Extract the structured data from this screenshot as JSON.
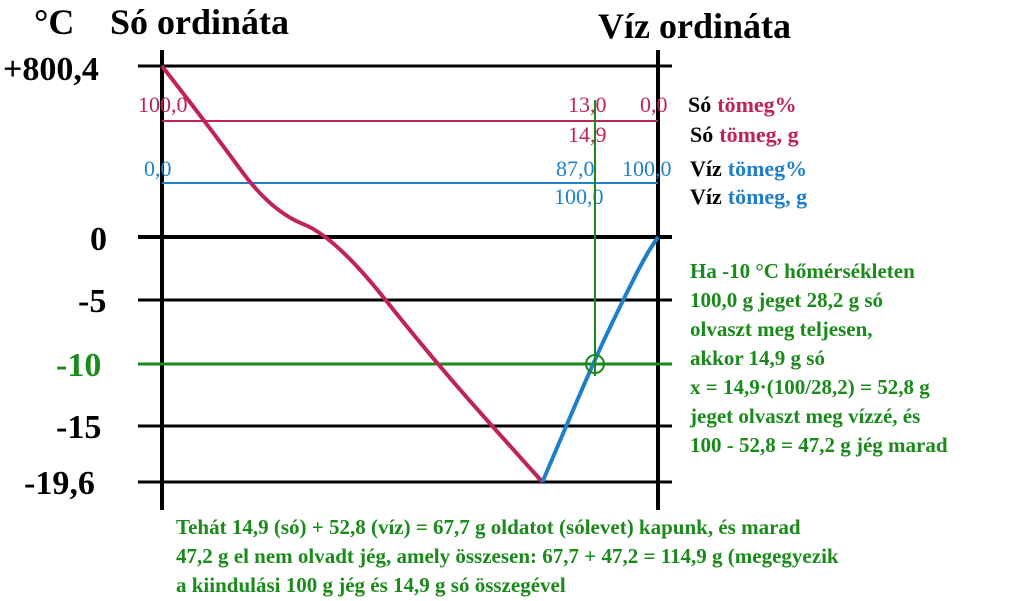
{
  "colors": {
    "salt": "#c0225a",
    "water": "#1f7fc9",
    "highlight": "#1a8a1a",
    "axis": "#000000"
  },
  "header": {
    "unit": "°C",
    "left_title": "Só ordináta",
    "right_title": "Víz ordináta"
  },
  "temperature_ticks": [
    {
      "label": "+800,4",
      "value": 800.4,
      "highlight": false
    },
    {
      "label": "0",
      "value": 0,
      "highlight": false
    },
    {
      "label": "-5",
      "value": -5,
      "highlight": false
    },
    {
      "label": "-10",
      "value": -10,
      "highlight": true
    },
    {
      "label": "-15",
      "value": -15,
      "highlight": false
    },
    {
      "label": "-19,6",
      "value": -19.6,
      "highlight": false
    }
  ],
  "scales": {
    "salt_percent": {
      "left_value": "100,0",
      "mid_value": "13,0",
      "right_value": "0,0",
      "label_prefix": "Só",
      "label_suffix": "tömeg%"
    },
    "salt_mass": {
      "mid_value": "14,9",
      "label_prefix": "Só",
      "label_suffix": "tömeg, g"
    },
    "water_percent": {
      "left_value": "0,0",
      "mid_value": "87,0",
      "right_value": "100,0",
      "label_prefix": "Víz",
      "label_suffix": "tömeg%"
    },
    "water_mass": {
      "mid_value": "100,0",
      "label_prefix": "Víz",
      "label_suffix": "tömeg, g"
    }
  },
  "chart_data": {
    "type": "line",
    "x_unit": "víz tömeg%",
    "y_unit": "°C",
    "series": [
      {
        "curve": "salt",
        "points": [
          [
            0,
            800.4
          ],
          [
            10,
            500
          ],
          [
            22,
            120
          ],
          [
            35,
            0
          ],
          [
            55,
            -10
          ],
          [
            76.7,
            -19.6
          ]
        ]
      },
      {
        "curve": "water",
        "points": [
          [
            76.7,
            -19.6
          ],
          [
            87,
            -10
          ],
          [
            93,
            -5
          ],
          [
            97.5,
            -1.5
          ],
          [
            100,
            0
          ]
        ]
      }
    ],
    "eutectic": {
      "water_percent": 76.7,
      "temperature": -19.6
    },
    "marker": {
      "water_percent": 87.0,
      "temperature": -10
    }
  },
  "side_note": [
    "Ha -10 °C hőmérsékleten",
    "100,0 g jeget 28,2 g só",
    "olvaszt meg teljesen,",
    "akkor 14,9 g só",
    "x = 14,9·(100/28,2) = 52,8 g",
    "jeget olvaszt meg vízzé, és",
    "100 - 52,8 = 47,2 g jég marad"
  ],
  "bottom_note": [
    "Tehát 14,9 (só) + 52,8 (víz) = 67,7 g oldatot (sólevet) kapunk, és marad",
    "47,2 g el nem olvadt jég, amely összesen: 67,7 + 47,2 = 114,9 g (megegyezik",
    "a kiindulási 100 g jég és 14,9 g só összegével"
  ]
}
